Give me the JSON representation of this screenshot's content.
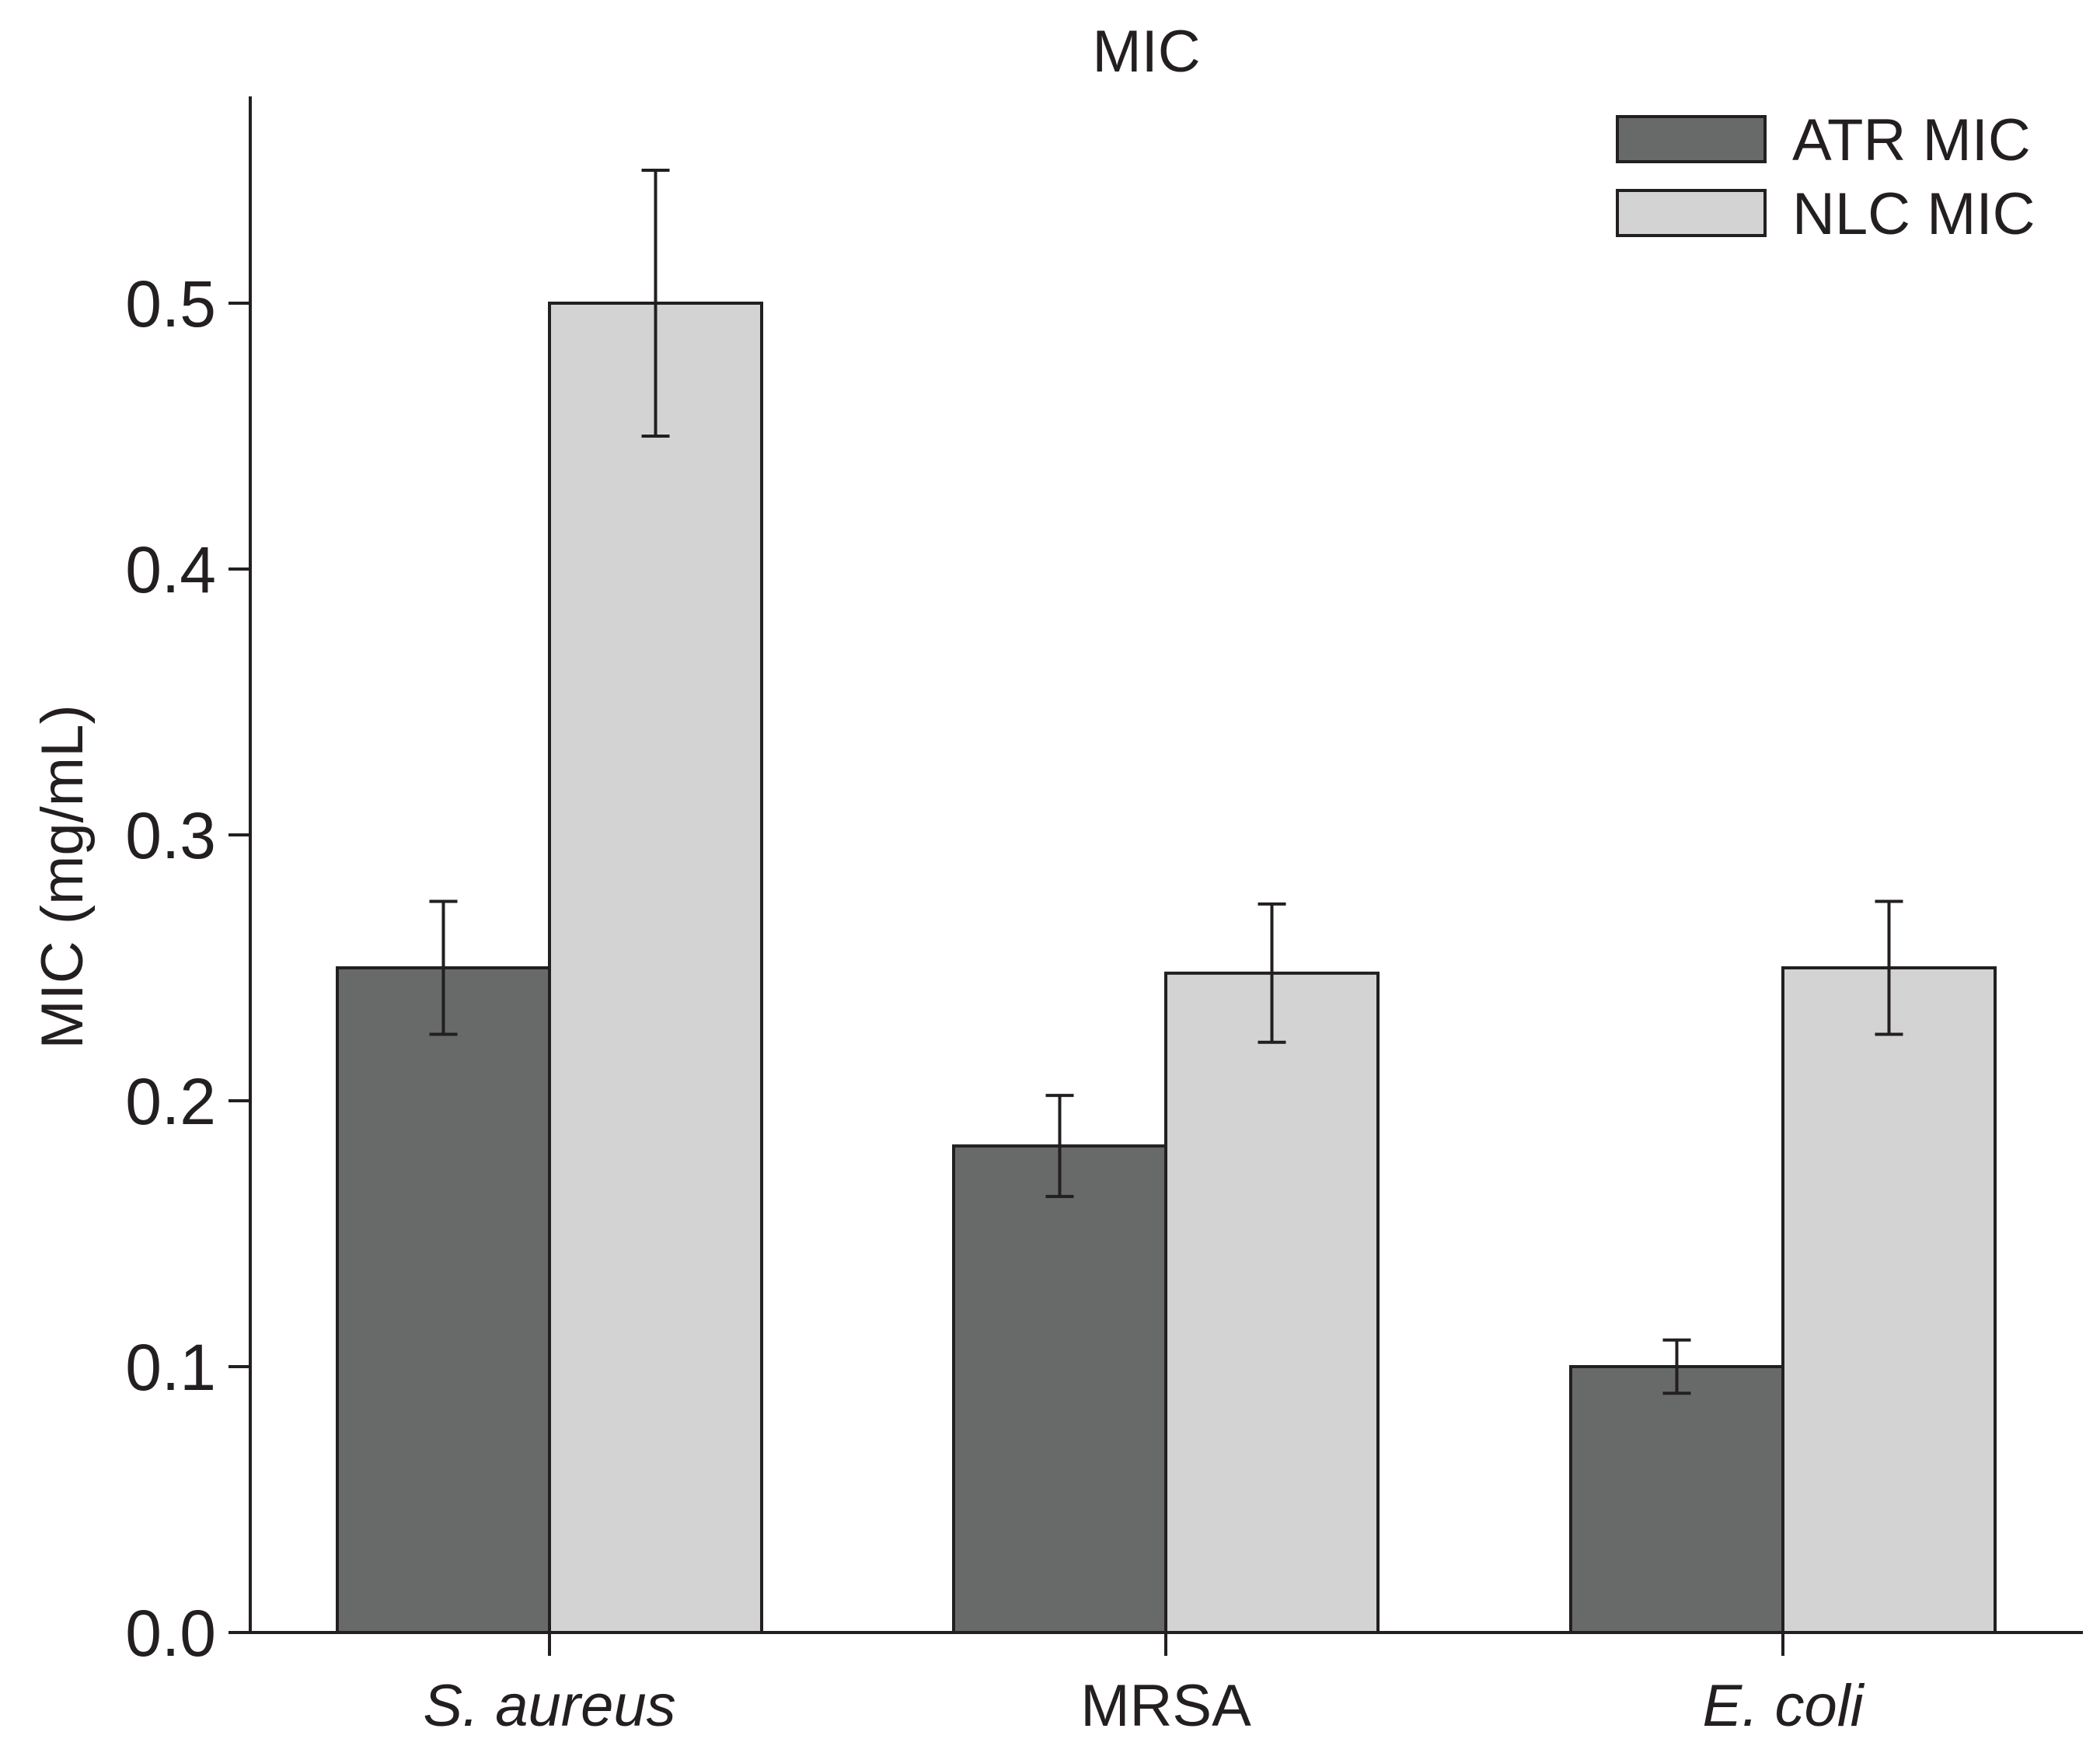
{
  "chart_data": {
    "type": "bar",
    "title": "MIC",
    "xlabel": "",
    "ylabel": "MIC (mg/mL)",
    "ylim": [
      0,
      0.575
    ],
    "yticks": [
      "0.0",
      "0.1",
      "0.2",
      "0.3",
      "0.4",
      "0.5"
    ],
    "categories": [
      {
        "label": "S. aureus",
        "italic": true
      },
      {
        "label": "MRSA",
        "italic": false
      },
      {
        "label": "E. coli",
        "italic": true
      }
    ],
    "series": [
      {
        "name": "ATR MIC",
        "color": "#686a69",
        "values": [
          0.25,
          0.183,
          0.1
        ],
        "errors": [
          0.025,
          0.019,
          0.01
        ]
      },
      {
        "name": "NLC MIC",
        "color": "#d3d3d3",
        "values": [
          0.5,
          0.248,
          0.25
        ],
        "errors": [
          0.05,
          0.026,
          0.025
        ]
      }
    ],
    "legend_position": "top-right",
    "grid": false
  }
}
